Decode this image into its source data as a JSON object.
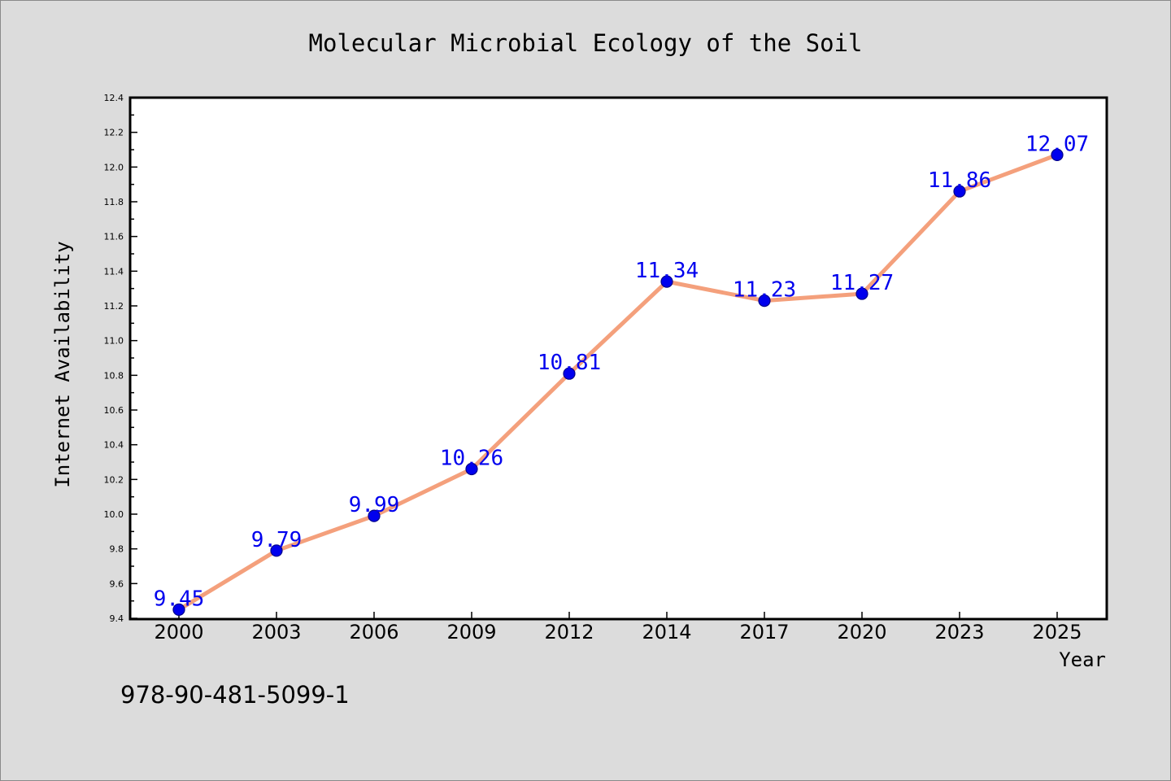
{
  "chart_data": {
    "type": "line",
    "title": "Molecular Microbial Ecology of the Soil",
    "xlabel": "Year",
    "ylabel": "Internet Availability",
    "categories": [
      "2000",
      "2003",
      "2006",
      "2009",
      "2012",
      "2014",
      "2017",
      "2020",
      "2023",
      "2025"
    ],
    "values": [
      9.45,
      9.79,
      9.99,
      10.26,
      10.81,
      11.34,
      11.23,
      11.27,
      11.86,
      12.07
    ],
    "data_labels": [
      "9.45",
      "9.79",
      "9.99",
      "10.26",
      "10.81",
      "11.34",
      "11.23",
      "11.27",
      "11.86",
      "12.07"
    ],
    "ylim": [
      9.4,
      12.4
    ],
    "yticks": [
      "9.4",
      "9.6",
      "9.8",
      "10.0",
      "10.2",
      "10.4",
      "10.6",
      "10.8",
      "11.0",
      "11.2",
      "11.4",
      "11.6",
      "11.8",
      "12.0",
      "12.2",
      "12.4"
    ],
    "grid": false,
    "legend": "none",
    "colors": {
      "line": "#f4a07c",
      "marker": "#0000ee",
      "marker_edge": "#00008b",
      "data_label": "#0000ee",
      "background": "#dcdcdc",
      "plot_background": "#ffffff"
    }
  },
  "footer_text": "978-90-481-5099-1"
}
